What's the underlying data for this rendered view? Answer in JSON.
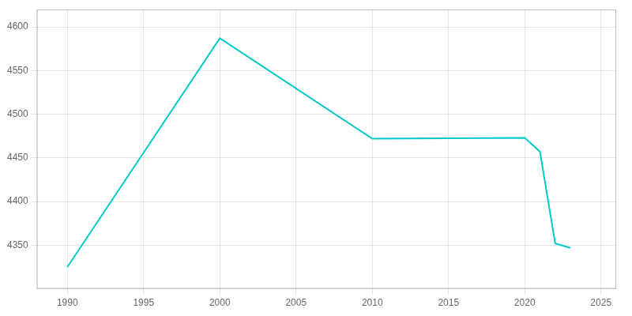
{
  "chart_data": {
    "type": "line",
    "x": [
      1990,
      2000,
      2010,
      2020,
      2021,
      2022,
      2023
    ],
    "values": [
      4325,
      4587,
      4472,
      4473,
      4457,
      4352,
      4347
    ],
    "color": "#00C8C8",
    "xlim": [
      1988,
      2026
    ],
    "ylim": [
      4300,
      4620
    ],
    "xticks": [
      1990,
      1995,
      2000,
      2005,
      2010,
      2015,
      2020,
      2025
    ],
    "yticks": [
      4350,
      4400,
      4450,
      4500,
      4550,
      4600
    ],
    "grid": true
  }
}
